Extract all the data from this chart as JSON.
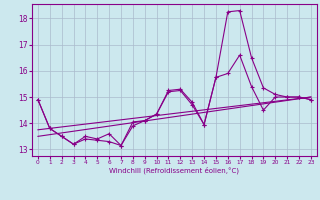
{
  "xlabel": "Windchill (Refroidissement éolien,°C)",
  "bg_color": "#cce8ee",
  "line_color": "#880088",
  "grid_color": "#aabbcc",
  "xmin": -0.5,
  "xmax": 23.5,
  "ymin": 12.75,
  "ymax": 18.55,
  "yticks": [
    13,
    14,
    15,
    16,
    17,
    18
  ],
  "xtick_labels": [
    "0",
    "1",
    "2",
    "3",
    "4",
    "5",
    "6",
    "7",
    "8",
    "9",
    "10",
    "11",
    "12",
    "13",
    "14",
    "15",
    "16",
    "17",
    "18",
    "19",
    "20",
    "21",
    "22",
    "23"
  ],
  "xticks": [
    0,
    1,
    2,
    3,
    4,
    5,
    6,
    7,
    8,
    9,
    10,
    11,
    12,
    13,
    14,
    15,
    16,
    17,
    18,
    19,
    20,
    21,
    22,
    23
  ],
  "line1_x": [
    0,
    1,
    2,
    3,
    4,
    5,
    6,
    7,
    8,
    9,
    10,
    11,
    12,
    13,
    14,
    15,
    16,
    17,
    18,
    19,
    20,
    21,
    22,
    23
  ],
  "line1_y": [
    14.9,
    13.8,
    13.5,
    13.2,
    13.5,
    13.4,
    13.6,
    13.15,
    14.05,
    14.1,
    14.35,
    15.25,
    15.3,
    14.8,
    13.95,
    15.75,
    18.25,
    18.3,
    16.5,
    15.35,
    15.1,
    15.0,
    15.0,
    14.9
  ],
  "line2_x": [
    0,
    1,
    2,
    3,
    4,
    5,
    6,
    7,
    8,
    9,
    10,
    11,
    12,
    13,
    14,
    15,
    16,
    17,
    18,
    19,
    20,
    21,
    22,
    23
  ],
  "line2_y": [
    14.9,
    13.8,
    13.5,
    13.2,
    13.4,
    13.35,
    13.3,
    13.15,
    13.9,
    14.1,
    14.35,
    15.2,
    15.25,
    14.7,
    13.95,
    15.75,
    15.9,
    16.6,
    15.4,
    14.5,
    15.0,
    15.0,
    15.0,
    14.9
  ],
  "line3_x": [
    0,
    23
  ],
  "line3_y": [
    13.75,
    15.0
  ],
  "line4_x": [
    0,
    23
  ],
  "line4_y": [
    13.5,
    15.0
  ]
}
